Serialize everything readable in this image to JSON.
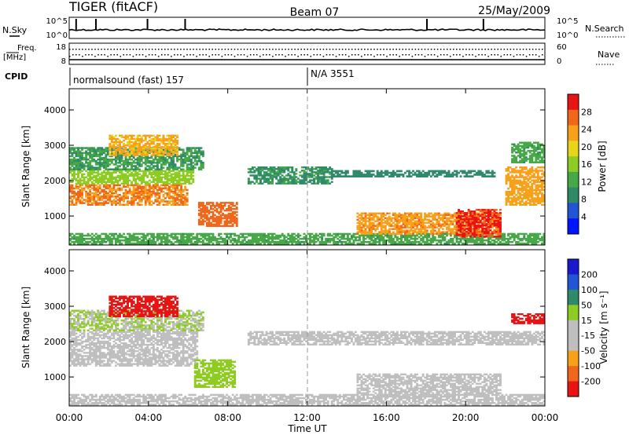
{
  "header": {
    "title": "TIGER (fitACF)",
    "beam": "Beam 07",
    "date": "25/May/2009"
  },
  "status_panels": {
    "nsky_label": "N.Sky",
    "nsky_ticks": [
      "10^5",
      "10^0"
    ],
    "nsearch_label": "N.Search",
    "nsearch_ticks": [
      "10^5",
      "10^0"
    ],
    "freq_label": [
      "Freq.",
      "[MHz]"
    ],
    "freq_ticks": [
      "18",
      "8"
    ],
    "nave_label": "Nave",
    "nave_ticks": [
      "60",
      "0"
    ],
    "cpid_label": "CPID",
    "cpid_segments": [
      "normalsound (fast) 157",
      "N/A 3551"
    ]
  },
  "chart_data": [
    {
      "type": "heatmap",
      "name": "power",
      "xlabel": "",
      "ylabel": "Slant Range [km]",
      "x_ticks": [
        "00:00",
        "04:00",
        "08:00",
        "12:00",
        "16:00",
        "20:00",
        "00:00"
      ],
      "y_ticks": [
        1000,
        2000,
        3000,
        4000
      ],
      "ylim": [
        180,
        4600
      ],
      "colorbar_label": "Power [dB]",
      "colorbar_ticks": [
        "4",
        "8",
        "12",
        "16",
        "20",
        "24",
        "28"
      ],
      "colorbar_range": [
        0,
        32
      ],
      "colorbar_colors": [
        "#0014ff",
        "#2255d5",
        "#2f8a6a",
        "#46a846",
        "#8ecc23",
        "#e8d41b",
        "#f7a11a",
        "#f2661b",
        "#e81414"
      ],
      "background_echo_color": "#c0c0c0",
      "echo_regions": [
        {
          "t0": 0.0,
          "t1": 6.0,
          "r0": 1300,
          "r1": 1900,
          "level": 25
        },
        {
          "t0": 0.0,
          "t1": 6.3,
          "r0": 1900,
          "r1": 2300,
          "level": 16
        },
        {
          "t0": 0.0,
          "t1": 6.8,
          "r0": 2300,
          "r1": 2950,
          "level": 11
        },
        {
          "t0": 2.0,
          "t1": 5.5,
          "r0": 2700,
          "r1": 3300,
          "level": 22
        },
        {
          "t0": 6.5,
          "t1": 8.5,
          "r0": 700,
          "r1": 1400,
          "level": 27
        },
        {
          "t0": 9.0,
          "t1": 13.3,
          "r0": 1900,
          "r1": 2400,
          "level": 10
        },
        {
          "t0": 13.2,
          "t1": 21.5,
          "r0": 2100,
          "r1": 2300,
          "level": 9
        },
        {
          "t0": 0.0,
          "t1": 24.0,
          "r0": 200,
          "r1": 520,
          "level": 12
        },
        {
          "t0": 14.5,
          "t1": 21.8,
          "r0": 480,
          "r1": 1100,
          "level": 24
        },
        {
          "t0": 19.5,
          "t1": 21.8,
          "r0": 400,
          "r1": 1200,
          "level": 29
        },
        {
          "t0": 22.0,
          "t1": 24.0,
          "r0": 1300,
          "r1": 2400,
          "level": 23
        },
        {
          "t0": 22.3,
          "t1": 24.0,
          "r0": 2500,
          "r1": 3100,
          "level": 12
        }
      ]
    },
    {
      "type": "heatmap",
      "name": "velocity",
      "xlabel": "Time UT",
      "ylabel": "Slant Range [km]",
      "x_ticks": [
        "00:00",
        "04:00",
        "08:00",
        "12:00",
        "16:00",
        "20:00",
        "00:00"
      ],
      "y_ticks": [
        1000,
        2000,
        3000,
        4000
      ],
      "ylim": [
        180,
        4600
      ],
      "colorbar_label": "Velocity [m s⁻¹]",
      "colorbar_ticks": [
        "200",
        "100",
        "50",
        "15",
        "-15",
        "-50",
        "-100",
        "-200"
      ],
      "colorbar_range": [
        -250,
        250
      ],
      "colorbar_colors": [
        "#e81414",
        "#f2661b",
        "#f7a11a",
        "#bfbfbf",
        "#bfbfbf",
        "#8ecc23",
        "#2f8a6a",
        "#2255d5",
        "#1a1acc"
      ],
      "echo_regions": [
        {
          "t0": 0.0,
          "t1": 6.5,
          "r0": 1300,
          "r1": 2300,
          "level": 0
        },
        {
          "t0": 0.0,
          "t1": 6.8,
          "r0": 2300,
          "r1": 2900,
          "level": 30
        },
        {
          "t0": 2.0,
          "t1": 5.5,
          "r0": 2700,
          "r1": 3300,
          "level": -220
        },
        {
          "t0": 6.3,
          "t1": 8.4,
          "r0": 700,
          "r1": 1500,
          "level": 60
        },
        {
          "t0": 9.0,
          "t1": 24.0,
          "r0": 1900,
          "r1": 2300,
          "level": 0
        },
        {
          "t0": 0.0,
          "t1": 24.0,
          "r0": 200,
          "r1": 520,
          "level": -40
        },
        {
          "t0": 14.5,
          "t1": 21.8,
          "r0": 480,
          "r1": 1100,
          "level": 0
        },
        {
          "t0": 22.3,
          "t1": 24.0,
          "r0": 2500,
          "r1": 2800,
          "level": -220
        }
      ]
    }
  ]
}
